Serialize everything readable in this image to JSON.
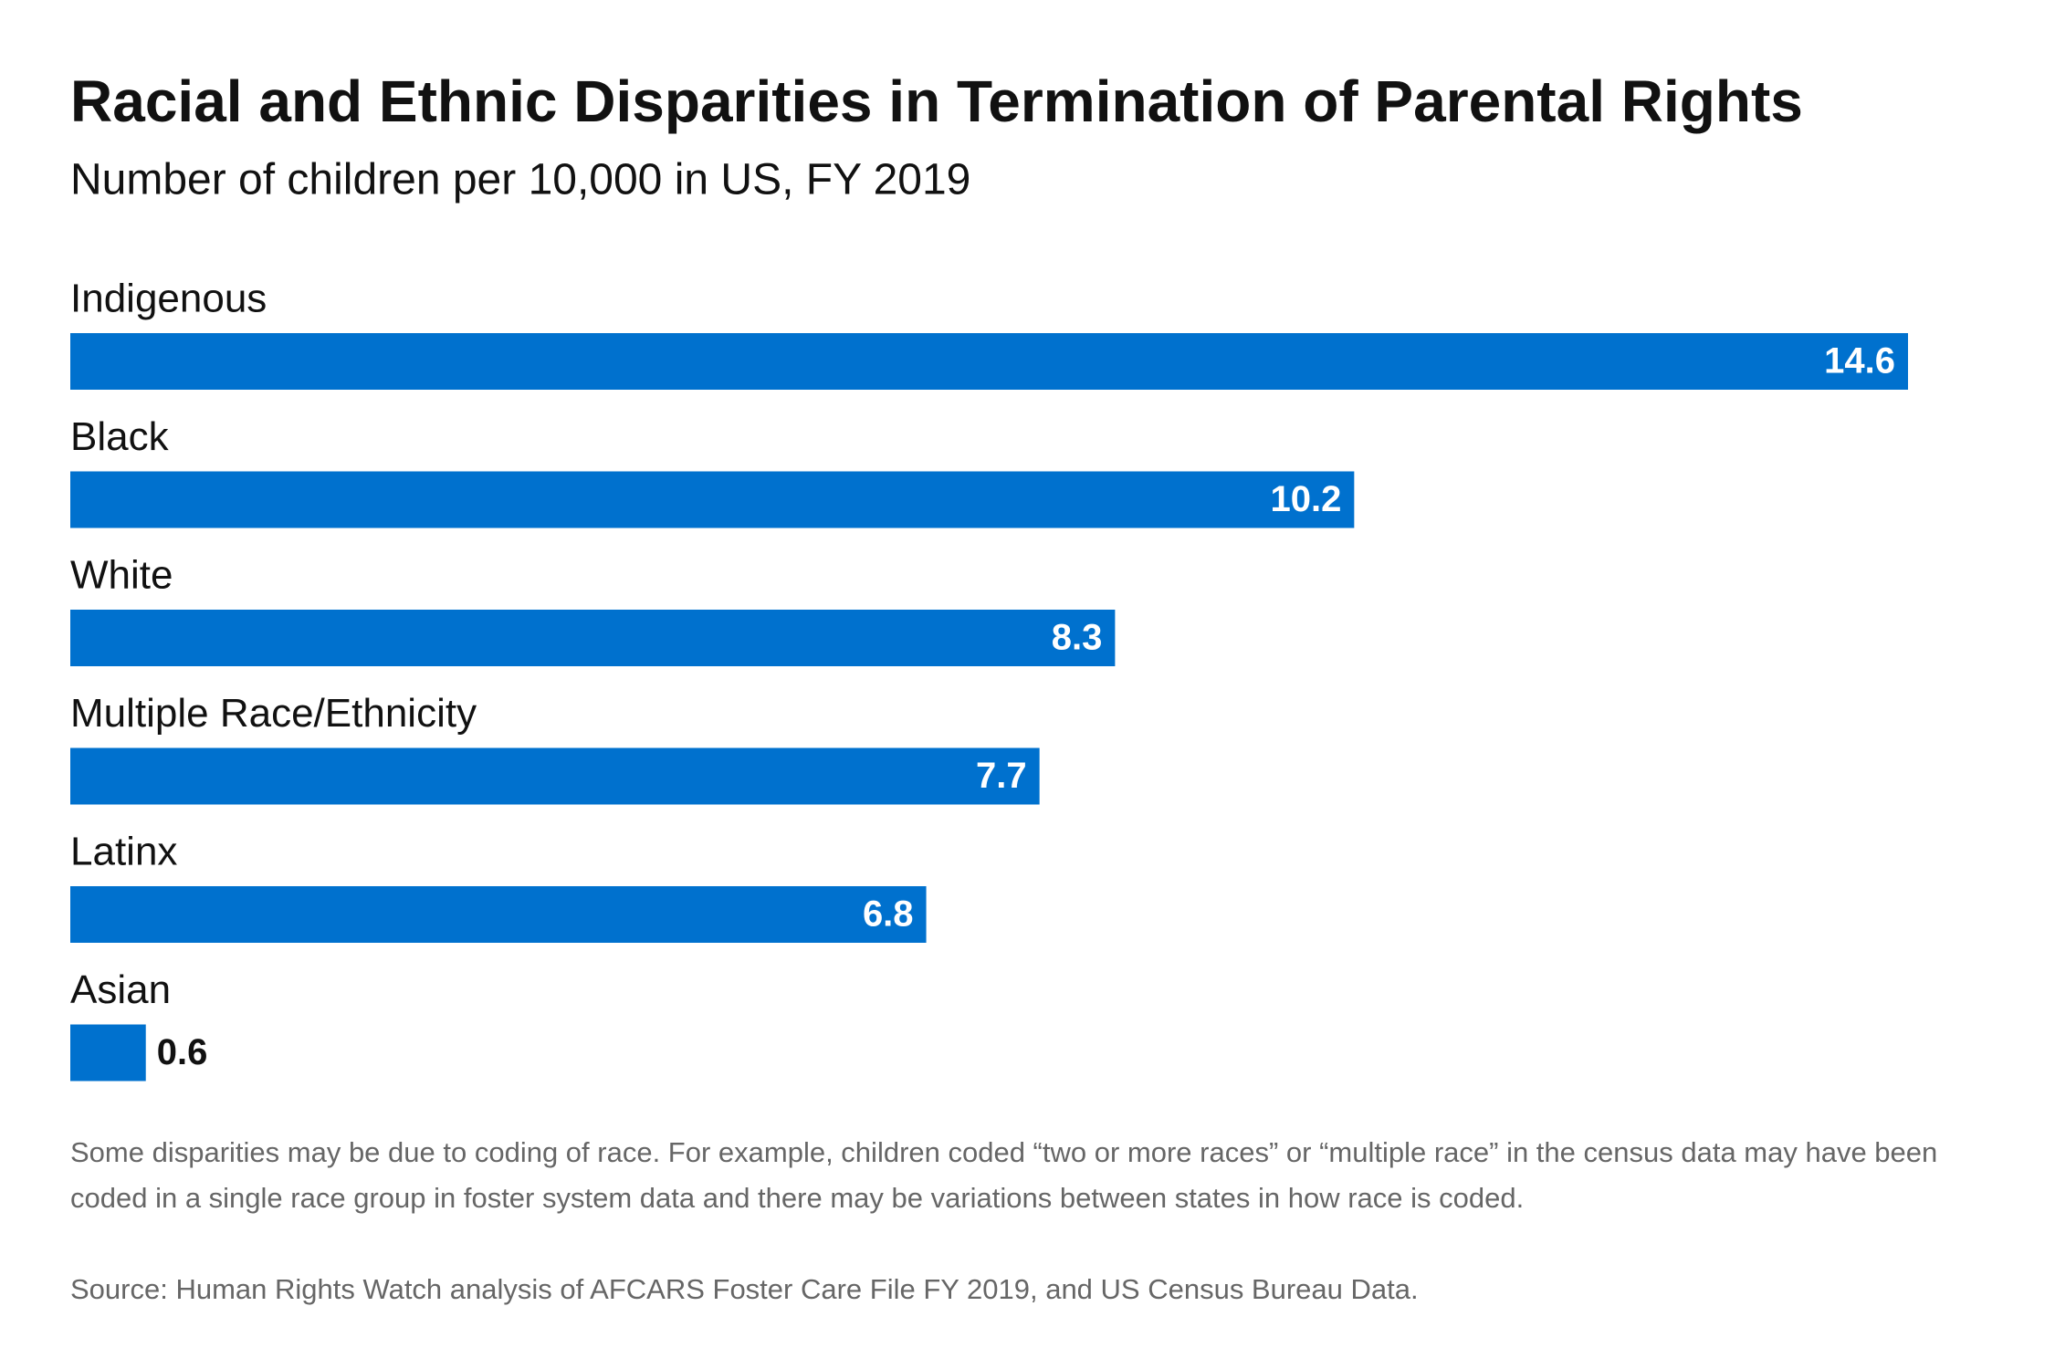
{
  "chart_data": {
    "type": "bar",
    "orientation": "horizontal",
    "title": "Racial and Ethnic Disparities in Termination of Parental Rights",
    "subtitle": "Number of children per 10,000 in US, FY 2019",
    "categories": [
      "Indigenous",
      "Black",
      "White",
      "Multiple Race/Ethnicity",
      "Latinx",
      "Asian"
    ],
    "values": [
      14.6,
      10.2,
      8.3,
      7.7,
      6.8,
      0.6
    ],
    "color": "#0071ce",
    "note": "Some disparities may be due to coding of race. For example, children coded “two or more races” or “multiple race” in the census data may have been coded in a single race group in foster system data and there may be variations between states in how race is coded.",
    "source": "Source: Human Rights Watch analysis of AFCARS Foster Care File FY 2019, and US Census Bureau Data."
  }
}
